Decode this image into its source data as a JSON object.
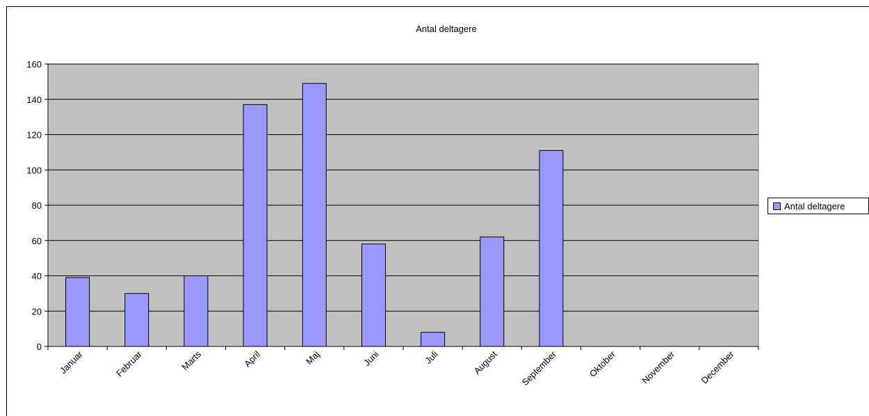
{
  "chart_data": {
    "type": "bar",
    "title": "Antal deltagere",
    "categories": [
      "Januar",
      "Februar",
      "Marts",
      "April",
      "Maj",
      "Juni",
      "Juli",
      "August",
      "September",
      "Oktober",
      "November",
      "December"
    ],
    "series": [
      {
        "name": "Antal deltagere",
        "values": [
          39,
          30,
          40,
          137,
          149,
          58,
          8,
          62,
          111,
          null,
          null,
          null
        ]
      }
    ],
    "ylim": [
      0,
      160
    ],
    "yticks": [
      0,
      20,
      40,
      60,
      80,
      100,
      120,
      140,
      160
    ],
    "grid": true,
    "legend_position": "right",
    "colors": {
      "bar": "#9999ff",
      "plot_background": "#c0c0c0",
      "gridline": "#000000"
    }
  }
}
